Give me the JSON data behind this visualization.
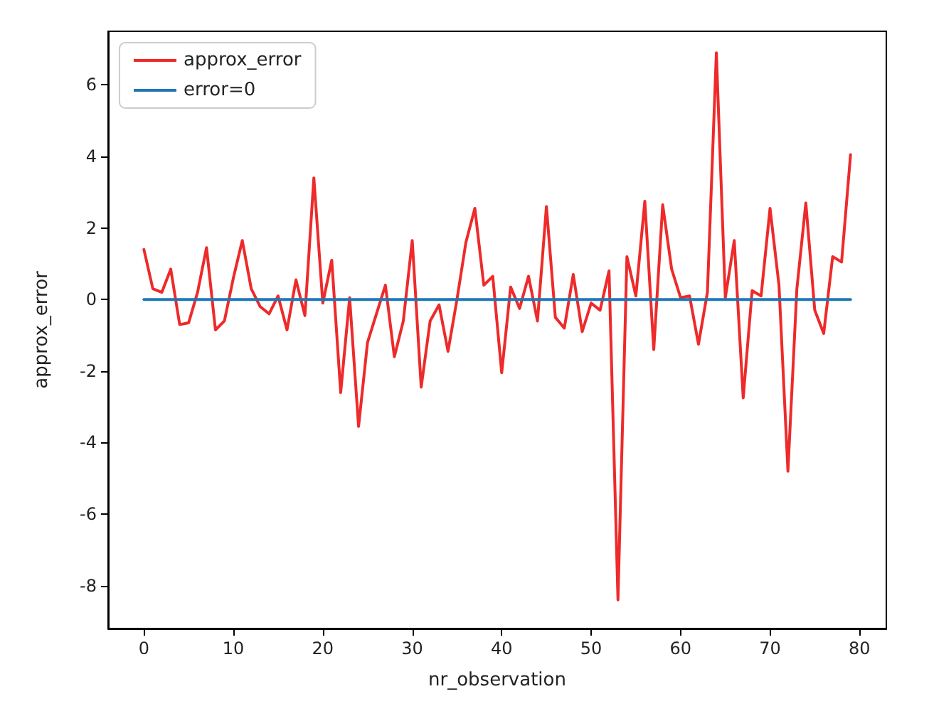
{
  "chart_data": {
    "type": "line",
    "xlabel": "nr_observation",
    "ylabel": "approx_error",
    "x": [
      0,
      1,
      2,
      3,
      4,
      5,
      6,
      7,
      8,
      9,
      10,
      11,
      12,
      13,
      14,
      15,
      16,
      17,
      18,
      19,
      20,
      21,
      22,
      23,
      24,
      25,
      26,
      27,
      28,
      29,
      30,
      31,
      32,
      33,
      34,
      35,
      36,
      37,
      38,
      39,
      40,
      41,
      42,
      43,
      44,
      45,
      46,
      47,
      48,
      49,
      50,
      51,
      52,
      53,
      54,
      55,
      56,
      57,
      58,
      59,
      60,
      61,
      62,
      63,
      64,
      65,
      66,
      67,
      68,
      69,
      70,
      71,
      72,
      73,
      74,
      75,
      76,
      77,
      78,
      79
    ],
    "series": [
      {
        "name": "approx_error",
        "color": "#ee2a2a",
        "values": [
          1.4,
          0.3,
          0.2,
          0.85,
          -0.7,
          -0.65,
          0.2,
          1.45,
          -0.85,
          -0.6,
          0.6,
          1.65,
          0.3,
          -0.2,
          -0.4,
          0.1,
          -0.85,
          0.55,
          -0.45,
          3.4,
          -0.1,
          1.1,
          -2.6,
          0.05,
          -3.55,
          -1.2,
          -0.4,
          0.4,
          -1.6,
          -0.6,
          1.65,
          -2.45,
          -0.6,
          -0.15,
          -1.45,
          0.0,
          1.6,
          2.55,
          0.4,
          0.65,
          -2.05,
          0.35,
          -0.25,
          0.65,
          -0.6,
          2.6,
          -0.5,
          -0.8,
          0.7,
          -0.9,
          -0.1,
          -0.3,
          0.8,
          -8.4,
          1.2,
          0.1,
          2.75,
          -1.4,
          2.65,
          0.85,
          0.05,
          0.1,
          -1.25,
          0.2,
          6.9,
          0.05,
          1.65,
          -2.75,
          0.25,
          0.1,
          2.55,
          0.4,
          -4.8,
          0.3,
          2.7,
          -0.3,
          -0.95,
          1.2,
          1.05,
          4.05
        ]
      },
      {
        "name": "error=0",
        "color": "#1f77b4",
        "values": [
          0,
          0,
          0,
          0,
          0,
          0,
          0,
          0,
          0,
          0,
          0,
          0,
          0,
          0,
          0,
          0,
          0,
          0,
          0,
          0,
          0,
          0,
          0,
          0,
          0,
          0,
          0,
          0,
          0,
          0,
          0,
          0,
          0,
          0,
          0,
          0,
          0,
          0,
          0,
          0,
          0,
          0,
          0,
          0,
          0,
          0,
          0,
          0,
          0,
          0,
          0,
          0,
          0,
          0,
          0,
          0,
          0,
          0,
          0,
          0,
          0,
          0,
          0,
          0,
          0,
          0,
          0,
          0,
          0,
          0,
          0,
          0,
          0,
          0,
          0,
          0,
          0,
          0,
          0,
          0
        ]
      }
    ],
    "xlim": [
      -4,
      83
    ],
    "ylim": [
      -9.2,
      7.5
    ],
    "xticks": [
      0,
      10,
      20,
      30,
      40,
      50,
      60,
      70,
      80
    ],
    "yticks": [
      -8,
      -6,
      -4,
      -2,
      0,
      2,
      4,
      6
    ],
    "legend": "top left",
    "grid": false,
    "marker": "none",
    "line_style": "solid"
  }
}
